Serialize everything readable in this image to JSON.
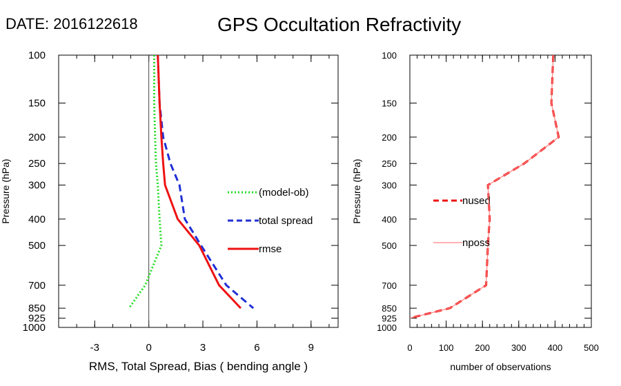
{
  "header": {
    "date_label": "DATE: 2016122618",
    "title": "GPS Occultation Refractivity"
  },
  "chart_data": [
    {
      "type": "line",
      "xlabel": "RMS, Total Spread, Bias ( bending angle )",
      "ylabel": "Pressure (hPa)",
      "xlim": [
        -5,
        10.5
      ],
      "ylim": [
        1000,
        100
      ],
      "y_scale": "log",
      "x_ticks": [
        -3,
        0,
        3,
        6,
        9
      ],
      "y_ticks": [
        100,
        150,
        200,
        250,
        300,
        400,
        500,
        700,
        850,
        925,
        1000
      ],
      "zero_line": true,
      "legend_position": "right-middle",
      "series": [
        {
          "name": "(model-ob)",
          "style": "dotted",
          "color": "#22dd22",
          "x": [
            0.3,
            0.3,
            0.35,
            0.4,
            0.5,
            0.6,
            0.7,
            -0.2,
            -1.1
          ],
          "y": [
            100,
            150,
            200,
            250,
            300,
            400,
            500,
            700,
            850
          ]
        },
        {
          "name": "total spread",
          "style": "dashed",
          "color": "#1f2fd6",
          "x": [
            0.5,
            0.6,
            0.8,
            1.2,
            1.7,
            2.0,
            2.9,
            4.3,
            5.8
          ],
          "y": [
            100,
            150,
            200,
            250,
            300,
            400,
            500,
            700,
            850
          ]
        },
        {
          "name": "rmse",
          "style": "solid",
          "color": "#ee1111",
          "x": [
            0.5,
            0.6,
            0.7,
            0.8,
            0.9,
            1.6,
            2.8,
            3.9,
            5.1
          ],
          "y": [
            100,
            150,
            200,
            250,
            300,
            400,
            500,
            700,
            850
          ]
        }
      ]
    },
    {
      "type": "line",
      "xlabel": "number of observations",
      "ylabel": "Pressure (hPa)",
      "xlim": [
        0,
        500
      ],
      "ylim": [
        1000,
        100
      ],
      "y_scale": "log",
      "x_ticks": [
        0,
        100,
        200,
        300,
        400,
        500
      ],
      "y_ticks": [
        100,
        150,
        200,
        250,
        300,
        400,
        500,
        700,
        850,
        925,
        1000
      ],
      "legend_position": "left-middle",
      "series": [
        {
          "name": "nused",
          "style": "dashed",
          "color": "#ee1111",
          "x": [
            395,
            390,
            410,
            315,
            215,
            220,
            215,
            210,
            110,
            0
          ],
          "y": [
            100,
            150,
            200,
            250,
            300,
            400,
            500,
            700,
            850,
            925
          ]
        },
        {
          "name": "nposs",
          "style": "solid-thin",
          "color": "#ff8080",
          "x": [
            395,
            390,
            410,
            315,
            215,
            220,
            215,
            210,
            110,
            0
          ],
          "y": [
            100,
            150,
            200,
            250,
            300,
            400,
            500,
            700,
            850,
            925
          ]
        }
      ]
    }
  ]
}
